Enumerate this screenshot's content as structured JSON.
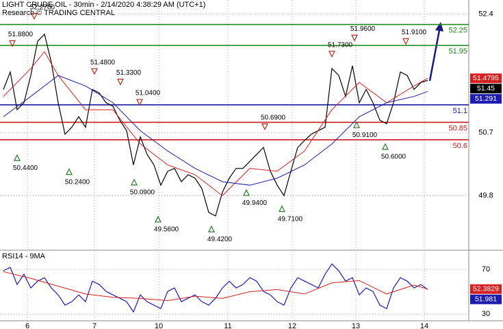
{
  "chart_data": [
    {
      "type": "line",
      "title": "LIGHT CRUDE OIL - 30min - 2/14/2020 4:38:29 AM (UTC+1)",
      "subtitle": "Research © TRADING CENTRAL",
      "xlim": [
        0,
        137
      ],
      "ylim": [
        49.02,
        52.6
      ],
      "yticks": [
        52.4,
        50.7,
        49.8
      ],
      "grid": true,
      "series": [
        {
          "color": "#000000",
          "x": [
            1,
            3,
            5,
            7,
            9,
            11,
            13,
            15,
            17,
            19,
            21,
            23,
            25,
            27,
            29,
            31,
            33,
            35,
            37,
            39,
            41,
            43,
            45,
            47,
            49,
            51,
            53,
            55,
            57,
            59,
            61,
            63,
            65,
            67,
            69,
            71,
            73,
            75,
            77,
            79,
            81,
            83,
            85,
            87,
            89,
            91,
            93,
            95,
            97,
            99,
            101,
            103,
            105,
            107,
            109,
            111,
            113,
            115,
            117,
            119,
            121,
            123,
            125
          ],
          "values": [
            51.32,
            51.57,
            51.03,
            51.13,
            51.52,
            52.01,
            52.11,
            51.71,
            51.13,
            50.68,
            50.78,
            50.93,
            50.78,
            51.32,
            51.27,
            51.13,
            51.08,
            50.88,
            50.73,
            50.24,
            50.64,
            50.39,
            50.24,
            49.95,
            50.15,
            50.19,
            50.0,
            50.1,
            50.05,
            49.9,
            49.56,
            49.51,
            49.85,
            50.05,
            50.19,
            50.19,
            50.29,
            50.39,
            50.49,
            50.15,
            49.95,
            49.8,
            50.15,
            50.49,
            50.59,
            50.68,
            50.73,
            50.78,
            51.62,
            51.52,
            51.22,
            51.66,
            51.13,
            51.32,
            51.13,
            50.88,
            50.83,
            51.13,
            51.57,
            51.52,
            51.32,
            51.42,
            51.45
          ]
        },
        {
          "color": "#d62020",
          "x": [
            1,
            9,
            13,
            17,
            25,
            33,
            41,
            49,
            57,
            65,
            73,
            81,
            89,
            97,
            105,
            113,
            121,
            125
          ],
          "values": [
            51.22,
            51.62,
            51.86,
            51.52,
            51.03,
            51.03,
            50.54,
            50.24,
            50.1,
            49.8,
            50.19,
            50.15,
            50.44,
            51.03,
            51.42,
            51.13,
            51.37,
            51.4795
          ]
        },
        {
          "color": "#1c1cb0",
          "x": [
            1,
            9,
            17,
            25,
            33,
            41,
            49,
            57,
            65,
            73,
            81,
            89,
            97,
            105,
            113,
            121,
            125
          ],
          "values": [
            50.93,
            51.22,
            51.52,
            51.37,
            51.13,
            50.73,
            50.44,
            50.19,
            50.0,
            49.95,
            50.05,
            50.24,
            50.54,
            50.93,
            51.13,
            51.22,
            51.291
          ]
        }
      ],
      "levels": [
        52.25,
        51.95,
        51.1,
        50.85,
        50.6
      ],
      "level_colors": [
        "#1e8c1e",
        "#1e8c1e",
        "#1a1aa6",
        "#cc1a1a",
        "#cc1a1a"
      ],
      "annotations": [
        {
          "label": "51.8800",
          "value": 51.88,
          "x": 3.6,
          "kind": "peak"
        },
        {
          "label": "52.2700",
          "value": 52.27,
          "x": 10,
          "kind": "peak"
        },
        {
          "label": "51.4800",
          "value": 51.48,
          "x": 27.6,
          "kind": "peak"
        },
        {
          "label": "51.3300",
          "value": 51.33,
          "x": 35.2,
          "kind": "peak"
        },
        {
          "label": "51.0400",
          "value": 51.04,
          "x": 40.8,
          "kind": "peak"
        },
        {
          "label": "50.6900",
          "value": 50.69,
          "x": 77.4,
          "kind": "peak"
        },
        {
          "label": "51.7300",
          "value": 51.73,
          "x": 97,
          "kind": "peak"
        },
        {
          "label": "51.9600",
          "value": 51.96,
          "x": 103.6,
          "kind": "peak"
        },
        {
          "label": "51.9100",
          "value": 51.91,
          "x": 118.6,
          "kind": "peak"
        },
        {
          "label": "50.4400",
          "value": 50.44,
          "x": 5,
          "kind": "trough"
        },
        {
          "label": "50.2400",
          "value": 50.24,
          "x": 20.2,
          "kind": "trough"
        },
        {
          "label": "50.0900",
          "value": 50.09,
          "x": 39.2,
          "kind": "trough"
        },
        {
          "label": "49.5600",
          "value": 49.56,
          "x": 46.2,
          "kind": "trough"
        },
        {
          "label": "49.4200",
          "value": 49.42,
          "x": 61.8,
          "kind": "trough"
        },
        {
          "label": "49.9400",
          "value": 49.94,
          "x": 72,
          "kind": "trough"
        },
        {
          "label": "49.7100",
          "value": 49.71,
          "x": 82.4,
          "kind": "trough"
        },
        {
          "label": "50.9100",
          "value": 50.91,
          "x": 104.2,
          "kind": "trough"
        },
        {
          "label": "50.6000",
          "value": 50.6,
          "x": 112.6,
          "kind": "trough"
        }
      ]
    },
    {
      "type": "line",
      "title": "RSI14 - 9MA",
      "xlim": [
        0,
        137
      ],
      "ylim": [
        24,
        86
      ],
      "yticks": [
        70,
        30
      ],
      "grid": true,
      "xticks": [
        {
          "value": 8,
          "label": "6"
        },
        {
          "value": 27.6,
          "label": "7"
        },
        {
          "value": 46.4,
          "label": "10"
        },
        {
          "value": 66.6,
          "label": "11"
        },
        {
          "value": 85.4,
          "label": "12"
        },
        {
          "value": 104,
          "label": "13"
        },
        {
          "value": 124,
          "label": "14"
        }
      ],
      "series": [
        {
          "color": "#1c1cb0",
          "x": [
            1,
            3,
            5,
            7,
            9,
            11,
            13,
            15,
            17,
            19,
            21,
            23,
            25,
            27,
            29,
            31,
            33,
            35,
            37,
            39,
            41,
            43,
            45,
            47,
            49,
            51,
            53,
            55,
            57,
            59,
            61,
            63,
            65,
            67,
            69,
            71,
            73,
            75,
            77,
            79,
            81,
            83,
            85,
            87,
            89,
            91,
            93,
            95,
            97,
            99,
            101,
            103,
            105,
            107,
            109,
            111,
            113,
            115,
            117,
            119,
            121,
            123,
            125
          ],
          "values": [
            68.8,
            71.8,
            56.5,
            65.7,
            53.4,
            59.5,
            62.6,
            53.4,
            47.2,
            38.0,
            41.1,
            47.2,
            41.1,
            59.5,
            56.5,
            50.3,
            47.2,
            44.2,
            41.1,
            31.9,
            47.2,
            41.1,
            38.0,
            34.9,
            50.3,
            53.4,
            41.1,
            44.2,
            47.2,
            41.1,
            38.0,
            44.2,
            53.4,
            59.5,
            53.4,
            56.5,
            62.6,
            59.5,
            50.3,
            47.2,
            41.1,
            38.0,
            53.4,
            62.6,
            59.5,
            56.5,
            53.4,
            65.7,
            74.9,
            68.8,
            59.5,
            62.6,
            47.2,
            53.4,
            50.3,
            38.0,
            34.9,
            53.4,
            62.6,
            59.5,
            53.4,
            56.5,
            51.981
          ]
        },
        {
          "color": "#d62020",
          "x": [
            1,
            9,
            17,
            25,
            33,
            41,
            49,
            57,
            65,
            73,
            81,
            89,
            97,
            105,
            113,
            121,
            125
          ],
          "values": [
            68,
            62,
            55,
            48,
            45,
            44,
            42,
            46,
            44,
            50,
            52,
            48,
            58,
            60,
            48,
            56,
            52.3829
          ]
        }
      ]
    }
  ]
}
